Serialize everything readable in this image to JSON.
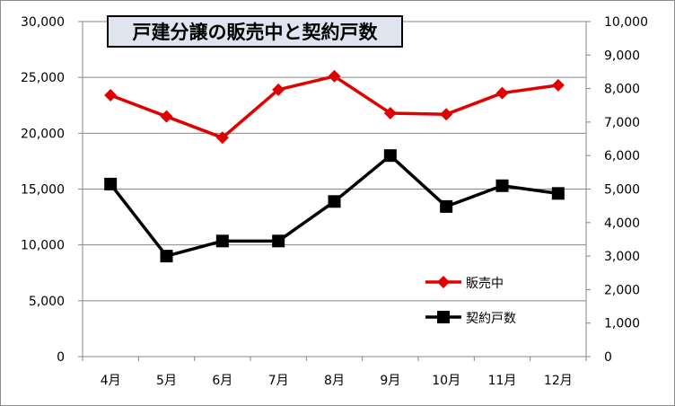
{
  "chart_data": {
    "type": "line",
    "title": "戸建分譲の販売中と契約戸数",
    "categories": [
      "4月",
      "5月",
      "6月",
      "7月",
      "8月",
      "9月",
      "10月",
      "11月",
      "12月"
    ],
    "series": [
      {
        "name": "販売中",
        "axis": "left",
        "color": "#e00000",
        "marker": "diamond",
        "values": [
          23400,
          21500,
          19600,
          23900,
          25100,
          21800,
          21700,
          23600,
          24300
        ]
      },
      {
        "name": "契約戸数",
        "axis": "right",
        "color": "#000000",
        "marker": "square",
        "values": [
          5150,
          3000,
          3450,
          3450,
          4630,
          6000,
          4480,
          5100,
          4870
        ]
      }
    ],
    "y_left": {
      "ylim": [
        0,
        30000
      ],
      "ticks": [
        "0",
        "5,000",
        "10,000",
        "15,000",
        "20,000",
        "25,000",
        "30,000"
      ]
    },
    "y_right": {
      "ylim": [
        0,
        10000
      ],
      "ticks": [
        "0",
        "1,000",
        "2,000",
        "3,000",
        "4,000",
        "5,000",
        "6,000",
        "7,000",
        "8,000",
        "9,000",
        "10,000"
      ]
    },
    "grid": "horizontal",
    "legend_position": "bottom-right"
  }
}
